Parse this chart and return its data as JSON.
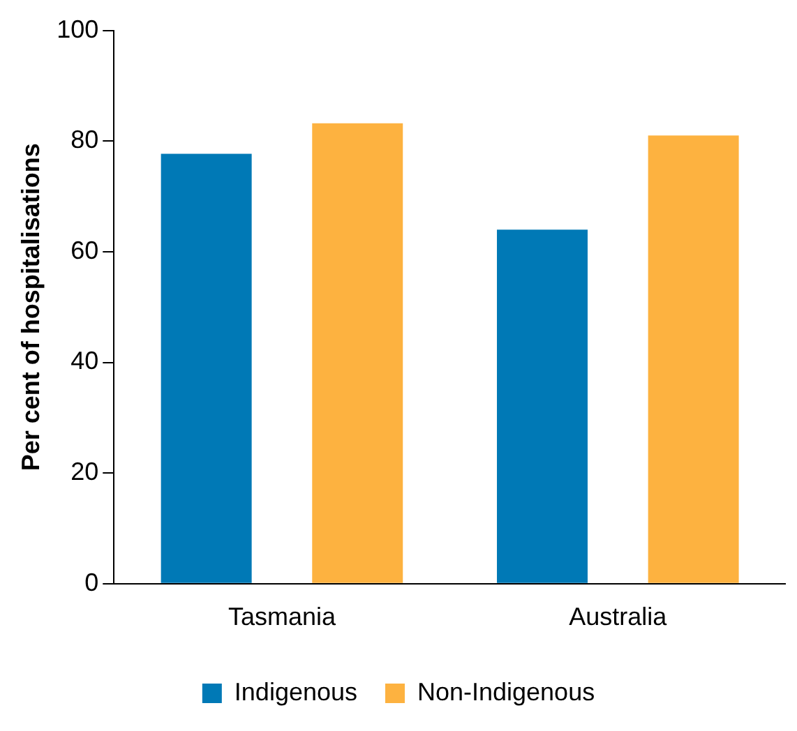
{
  "chart_data": {
    "type": "bar",
    "ylabel": "Per cent of hospitalisations",
    "categories": [
      "Tasmania",
      "Australia"
    ],
    "series": [
      {
        "name": "Indigenous",
        "color": "#0079b6",
        "values": [
          77.7,
          64
        ]
      },
      {
        "name": "Non-Indigenous",
        "color": "#fdb240",
        "values": [
          83.2,
          81
        ]
      }
    ],
    "ylim": [
      0,
      100
    ],
    "yticks": [
      0,
      20,
      40,
      60,
      80,
      100
    ],
    "grid": false,
    "legend": "bottom"
  }
}
